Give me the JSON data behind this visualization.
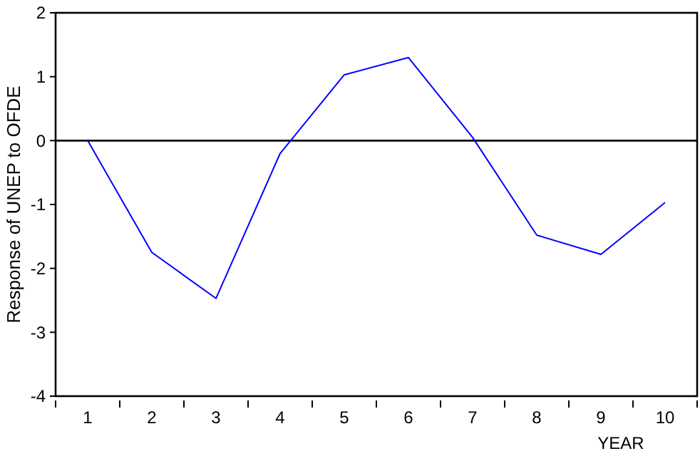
{
  "chart_data": {
    "type": "line",
    "xlabel": "YEAR",
    "ylabel": "Response of UNEP to OFDE",
    "categories": [
      "1",
      "2",
      "3",
      "4",
      "5",
      "6",
      "7",
      "8",
      "9",
      "10"
    ],
    "series": [
      {
        "color": "#0000ff",
        "values": [
          0,
          -1.75,
          -2.47,
          -0.2,
          1.03,
          1.3,
          0.05,
          -1.48,
          -1.78,
          -0.97
        ]
      }
    ],
    "ylim": [
      -4,
      2
    ],
    "yticks": [
      -4,
      -3,
      -2,
      -1,
      0,
      1,
      2
    ],
    "grid": false,
    "marker": "none",
    "line_style": "solid",
    "ref_lines": [
      {
        "axis": "y",
        "value": 0,
        "color": "#000000"
      }
    ]
  }
}
